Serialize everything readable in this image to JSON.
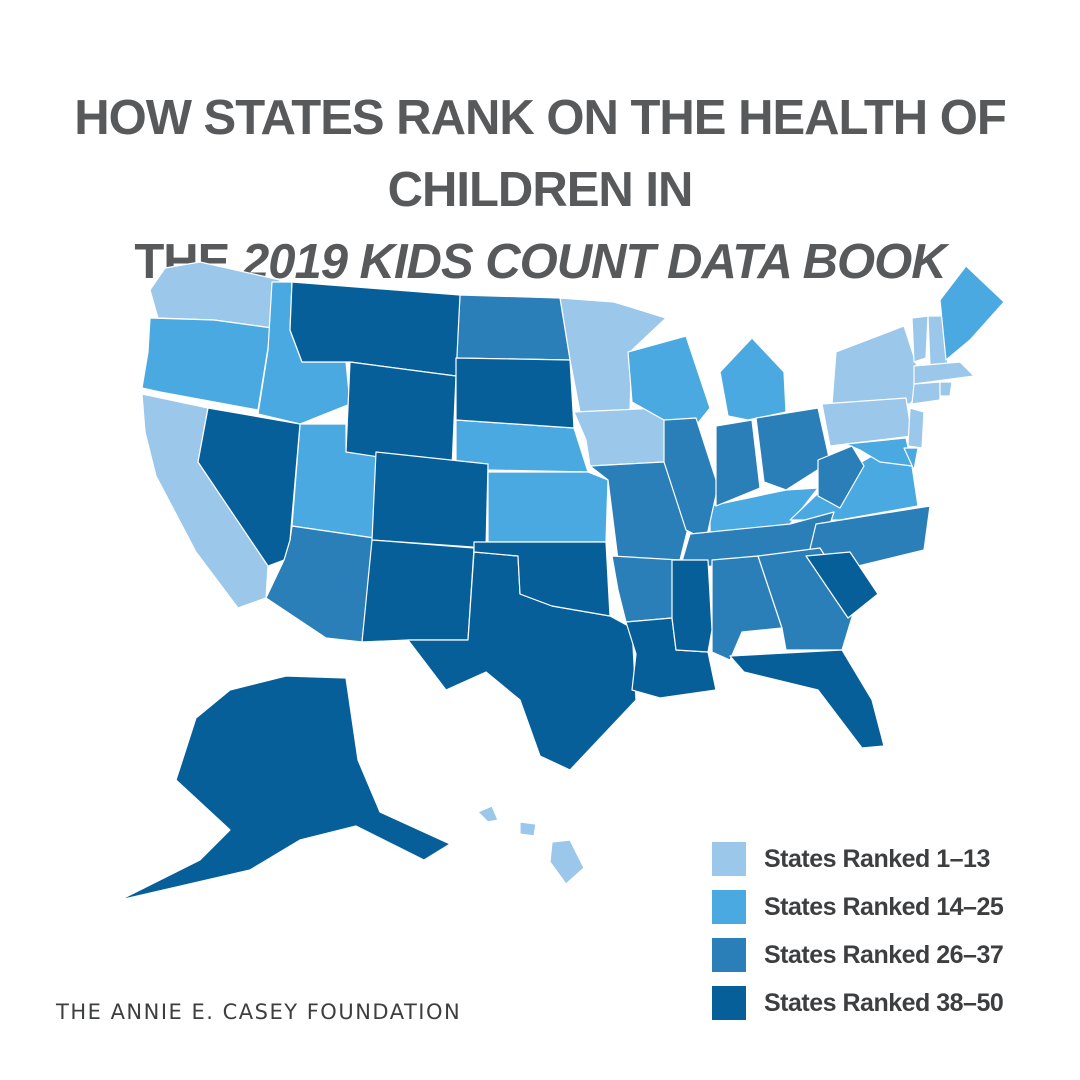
{
  "title": {
    "line1": "HOW STATES RANK ON THE HEALTH OF CHILDREN IN",
    "line2_prefix": "THE ",
    "line2_emphasis": "2019 KIDS COUNT DATA BOOK"
  },
  "legend": [
    {
      "label": "States Ranked 1–13",
      "color": "#9ac7ea"
    },
    {
      "label": "States Ranked 14–25",
      "color": "#4aa9e0"
    },
    {
      "label": "States Ranked 26–37",
      "color": "#2a7fb8"
    },
    {
      "label": "States Ranked 38–50",
      "color": "#065f99"
    }
  ],
  "footer": "THE ANNIE E. CASEY FOUNDATION",
  "map_data": {
    "tiers": {
      "1-13": [
        "WA",
        "CA",
        "MN",
        "IA",
        "NY",
        "PA",
        "VT",
        "NH",
        "MA",
        "CT",
        "RI",
        "NJ",
        "HI"
      ],
      "14-25": [
        "OR",
        "ID",
        "UT",
        "NE",
        "KS",
        "WI",
        "MI",
        "ME",
        "KY",
        "VA",
        "MD",
        "DE"
      ],
      "26-37": [
        "ND",
        "AZ",
        "MO",
        "AR",
        "IL",
        "IN",
        "OH",
        "WV",
        "TN",
        "NC",
        "AL",
        "GA"
      ],
      "38-50": [
        "MT",
        "WY",
        "SD",
        "NV",
        "CO",
        "NM",
        "TX",
        "OK",
        "LA",
        "MS",
        "SC",
        "FL",
        "AK"
      ]
    }
  }
}
